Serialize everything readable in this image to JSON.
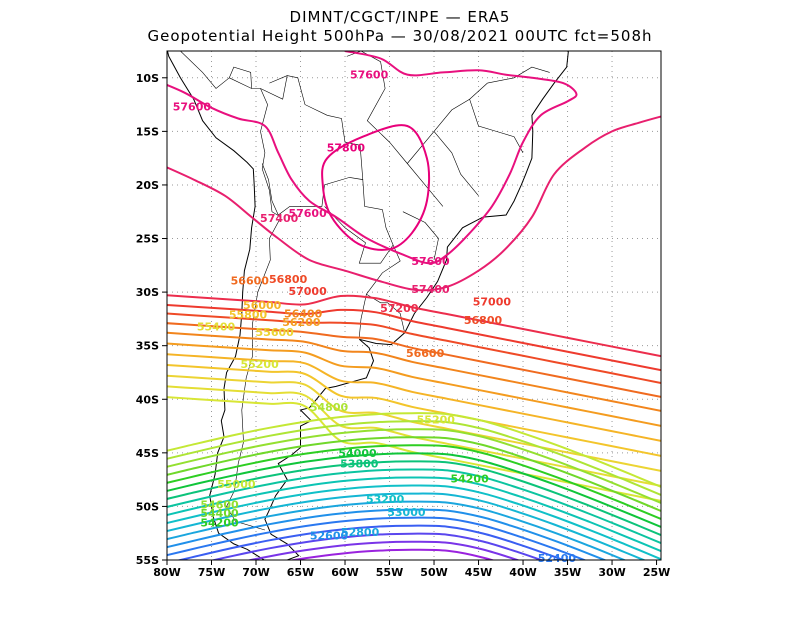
{
  "title_line1": "DIMNT/CGCT/INPE —  ERA5",
  "title_line2": "Geopotential Height 500hPa —  30/08/2021 00UTC fct=508h",
  "lat_ticks": [
    "10S",
    "15S",
    "20S",
    "25S",
    "30S",
    "35S",
    "40S",
    "45S",
    "50S",
    "55S"
  ],
  "lon_ticks": [
    "80W",
    "75W",
    "70W",
    "65W",
    "60W",
    "55W",
    "50W",
    "45W",
    "40W",
    "35W",
    "30W",
    "25W"
  ],
  "contours": [
    {
      "level": "57800",
      "color": "#e8007a"
    },
    {
      "level": "57600",
      "color": "#e8107e"
    },
    {
      "level": "57400",
      "color": "#e81f6e"
    },
    {
      "level": "57200",
      "color": "#ec2d4c"
    },
    {
      "level": "57000",
      "color": "#ee3a2e"
    },
    {
      "level": "56800",
      "color": "#ef4a26"
    },
    {
      "level": "56600",
      "color": "#f06a1f"
    },
    {
      "level": "56400",
      "color": "#f2851c"
    },
    {
      "level": "56200",
      "color": "#f49c1f"
    },
    {
      "level": "56000",
      "color": "#f5b426"
    },
    {
      "level": "55800",
      "color": "#f3c52b"
    },
    {
      "level": "55600",
      "color": "#ecd433"
    },
    {
      "level": "55400",
      "color": "#e4de35"
    },
    {
      "level": "55200",
      "color": "#d8e635"
    },
    {
      "level": "55000",
      "color": "#c4e835"
    },
    {
      "level": "54800",
      "color": "#aee535"
    },
    {
      "level": "54600",
      "color": "#94e030"
    },
    {
      "level": "54400",
      "color": "#70d82a"
    },
    {
      "level": "54200",
      "color": "#2ece22"
    },
    {
      "level": "54000",
      "color": "#10c53a"
    },
    {
      "level": "53800",
      "color": "#0cc37a"
    },
    {
      "level": "53600",
      "color": "#0cc4a0"
    },
    {
      "level": "53400",
      "color": "#0cc4b4"
    },
    {
      "level": "53200",
      "color": "#10c0c8"
    },
    {
      "level": "53000",
      "color": "#14b6d4"
    },
    {
      "level": "52800",
      "color": "#1aa6de"
    },
    {
      "level": "52600",
      "color": "#2090ea"
    },
    {
      "level": "52400",
      "color": "#2a78f0"
    },
    {
      "level": "52200",
      "color": "#3a5ef2"
    },
    {
      "level": "52000",
      "color": "#5a46ee"
    },
    {
      "level": "51800",
      "color": "#7a34e8"
    },
    {
      "level": "51600",
      "color": "#9a22de"
    }
  ],
  "labels": [
    {
      "text": "57600",
      "level": "57600",
      "x": -57.3,
      "y": -9.7
    },
    {
      "text": "57600",
      "level": "57600",
      "x": -77.2,
      "y": -12.7
    },
    {
      "text": "57800",
      "level": "57800",
      "x": -59.9,
      "y": -16.5
    },
    {
      "text": "57600",
      "level": "57600",
      "x": -64.2,
      "y": -22.6
    },
    {
      "text": "57400",
      "level": "57400",
      "x": -67.4,
      "y": -23.1
    },
    {
      "text": "57600",
      "level": "57600",
      "x": -50.4,
      "y": -27.1
    },
    {
      "text": "57400",
      "level": "57400",
      "x": -50.4,
      "y": -29.7
    },
    {
      "text": "57200",
      "level": "57200",
      "x": -53.9,
      "y": -31.5
    },
    {
      "text": "57000",
      "level": "57000",
      "x": -43.5,
      "y": -30.9
    },
    {
      "text": "56800",
      "level": "56800",
      "x": -44.5,
      "y": -32.6
    },
    {
      "text": "56600",
      "level": "56600",
      "x": -51.0,
      "y": -35.7
    },
    {
      "text": "56800",
      "level": "56800",
      "x": -66.4,
      "y": -28.8
    },
    {
      "text": "57000",
      "level": "57000",
      "x": -64.2,
      "y": -29.9
    },
    {
      "text": "56600",
      "level": "56600",
      "x": -70.7,
      "y": -28.9
    },
    {
      "text": "56000",
      "level": "56000",
      "x": -69.3,
      "y": -31.2
    },
    {
      "text": "55800",
      "level": "55800",
      "x": -70.9,
      "y": -32.1
    },
    {
      "text": "56400",
      "level": "56400",
      "x": -64.7,
      "y": -32.0
    },
    {
      "text": "56200",
      "level": "56200",
      "x": -64.9,
      "y": -32.8
    },
    {
      "text": "55400",
      "level": "55400",
      "x": -74.5,
      "y": -33.2
    },
    {
      "text": "55600",
      "level": "55600",
      "x": -67.9,
      "y": -33.7
    },
    {
      "text": "55200",
      "level": "55200",
      "x": -69.6,
      "y": -36.7
    },
    {
      "text": "54800",
      "level": "54800",
      "x": -61.8,
      "y": -40.7
    },
    {
      "text": "55200",
      "level": "55200",
      "x": -49.8,
      "y": -41.9
    },
    {
      "text": "54000",
      "level": "54000",
      "x": -58.6,
      "y": -45.0
    },
    {
      "text": "53800",
      "level": "53800",
      "x": -58.4,
      "y": -46.0
    },
    {
      "text": "54200",
      "level": "54200",
      "x": -46.0,
      "y": -47.4
    },
    {
      "text": "55000",
      "level": "55000",
      "x": -72.2,
      "y": -47.9
    },
    {
      "text": "53200",
      "level": "53200",
      "x": -55.5,
      "y": -49.3
    },
    {
      "text": "53000",
      "level": "53000",
      "x": -53.1,
      "y": -50.5
    },
    {
      "text": "54600",
      "level": "54600",
      "x": -74.1,
      "y": -49.8
    },
    {
      "text": "54400",
      "level": "54400",
      "x": -74.1,
      "y": -50.6
    },
    {
      "text": "54200",
      "level": "54200",
      "x": -74.1,
      "y": -51.5
    },
    {
      "text": "52800",
      "level": "52800",
      "x": -58.3,
      "y": -52.4
    },
    {
      "text": "52600",
      "level": "52600",
      "x": -61.8,
      "y": -52.7
    },
    {
      "text": "52400",
      "level": "52400",
      "x": -36.2,
      "y": -54.8
    }
  ]
}
